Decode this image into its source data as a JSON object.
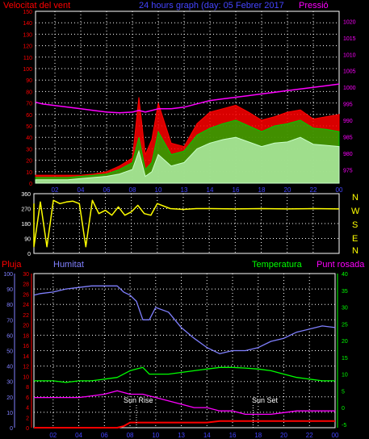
{
  "chart_data": [
    {
      "type": "line",
      "title": "24 hours graph (day: 05 Febrer 2017",
      "left_axis_label": "Velocitat del vent",
      "right_axis_label": "Pressió",
      "x_ticks": [
        "02",
        "04",
        "06",
        "08",
        "10",
        "13",
        "14",
        "16",
        "18",
        "20",
        "22",
        "00"
      ],
      "y_left_ticks": [
        0,
        10,
        20,
        30,
        40,
        50,
        60,
        70,
        80,
        90,
        100,
        110,
        120,
        130,
        140,
        150
      ],
      "y_left_range": [
        0,
        150
      ],
      "y_right_ticks": [
        975,
        980,
        985,
        990,
        995,
        1000,
        1005,
        1010,
        1015,
        1020
      ],
      "y_right_range": [
        971,
        1023
      ],
      "grid": true,
      "colors": {
        "gust": "#ff0000",
        "average": "#00cc00",
        "speed": "#c8ffc8",
        "pressure": "#ff00ff",
        "left_text": "#ff0000",
        "right_text": "#ff00ff",
        "title": "#4444ff"
      },
      "hours": [
        0,
        1,
        2,
        3,
        4,
        5,
        6,
        7,
        8,
        8.5,
        9,
        9.5,
        10,
        11,
        12,
        13,
        14,
        15,
        16,
        17,
        18,
        19,
        20,
        21,
        22,
        23,
        24
      ],
      "series": [
        {
          "name": "",
          "role": "gust",
          "values": [
            7,
            7,
            7,
            7,
            7,
            8,
            10,
            15,
            22,
            75,
            25,
            38,
            70,
            35,
            32,
            52,
            62,
            65,
            68,
            62,
            55,
            58,
            62,
            64,
            56,
            58,
            60
          ]
        },
        {
          "name": "",
          "role": "average",
          "values": [
            5,
            5,
            5,
            5,
            6,
            7,
            8,
            12,
            18,
            40,
            12,
            18,
            45,
            25,
            28,
            42,
            48,
            52,
            55,
            50,
            45,
            50,
            52,
            55,
            48,
            47,
            45
          ]
        },
        {
          "name": "",
          "role": "speed",
          "values": [
            3,
            3,
            3,
            3,
            4,
            5,
            6,
            8,
            12,
            28,
            6,
            10,
            25,
            15,
            18,
            30,
            35,
            38,
            40,
            36,
            32,
            35,
            36,
            40,
            34,
            33,
            32
          ]
        },
        {
          "name": "",
          "role": "pressure",
          "values": [
            995.5,
            995,
            994.5,
            994,
            993.5,
            993,
            992.5,
            992.3,
            992.5,
            993,
            992.5,
            993,
            993.5,
            993.5,
            994,
            995,
            996,
            996.5,
            997,
            997.5,
            998,
            998.5,
            999,
            999.5,
            1000,
            1000.5,
            1001
          ]
        }
      ]
    },
    {
      "type": "line",
      "right_labels": [
        "N",
        "W",
        "S",
        "E",
        "N"
      ],
      "y_ticks": [
        0,
        90,
        180,
        270,
        360
      ],
      "y_range": [
        0,
        360
      ],
      "grid": true,
      "colors": {
        "direction": "#ffff00",
        "labels": "#ffff00",
        "axis": "#ffffff"
      },
      "hours": [
        0,
        0.5,
        1,
        1.5,
        2,
        2.5,
        3,
        3.5,
        4,
        4.5,
        5,
        5.5,
        6,
        6.5,
        7,
        7.5,
        8,
        8.5,
        9,
        9.5,
        10,
        11,
        12,
        13,
        14,
        16,
        18,
        20,
        22,
        24
      ],
      "series": [
        {
          "name": "",
          "role": "direction",
          "values": [
            300,
            40,
            310,
            40,
            320,
            300,
            310,
            315,
            300,
            40,
            320,
            240,
            260,
            230,
            280,
            230,
            250,
            290,
            240,
            230,
            300,
            270,
            265,
            270,
            270,
            268,
            270,
            268,
            270,
            268
          ]
        }
      ]
    },
    {
      "type": "line",
      "labels": {
        "rain": "Pluja",
        "humidity": "Humitat",
        "temperature": "Temperatura",
        "dewpoint": "Punt rosada"
      },
      "annotations": [
        "Sun Rise",
        "Sun Set"
      ],
      "annotation_hours": [
        8.5,
        17.6
      ],
      "x_ticks": [
        "02",
        "04",
        "06",
        "08",
        "10",
        "13",
        "14",
        "16",
        "18",
        "20",
        "22",
        "00"
      ],
      "y_far_left_ticks": [
        0,
        10,
        20,
        30,
        40,
        50,
        60,
        70,
        80,
        90,
        100
      ],
      "y_far_left_range": [
        0,
        100
      ],
      "y_left_ticks": [
        0,
        2,
        4,
        6,
        8,
        10,
        12,
        14,
        16,
        18,
        20,
        22,
        24,
        26,
        28,
        30
      ],
      "y_left_range": [
        0,
        30
      ],
      "y_right_ticks": [
        -5,
        0,
        5,
        10,
        15,
        20,
        25,
        30,
        35,
        40
      ],
      "y_right_range": [
        -6,
        40
      ],
      "grid": true,
      "colors": {
        "rain": "#ff0000",
        "humidity": "#8080ff",
        "temperature": "#00ff00",
        "dewpoint": "#ff00ff",
        "rain_text": "#ff0000",
        "humidity_text": "#8080ff",
        "temperature_text": "#00ff00",
        "dewpoint_text": "#ff00ff",
        "annotation": "#ffffff"
      },
      "hours": [
        0,
        1,
        2,
        3,
        4,
        5,
        6,
        7,
        7.5,
        8,
        8.5,
        9,
        9.5,
        10,
        11,
        12,
        13,
        14,
        15,
        16,
        17,
        18,
        19,
        20,
        21,
        22,
        23,
        24
      ],
      "series": [
        {
          "name": "",
          "role": "rain",
          "values": [
            0,
            0,
            0,
            0,
            0,
            0,
            0,
            0,
            0.3,
            1,
            1,
            1,
            1,
            1,
            1,
            1,
            1,
            1,
            1.3,
            1.3,
            1.3,
            1.3,
            1.3,
            1.3,
            1.3,
            1.3,
            1.3,
            1.3
          ]
        },
        {
          "name": "",
          "role": "humidity",
          "values": [
            86,
            87,
            88,
            90,
            91,
            92,
            92,
            92,
            88,
            86,
            82,
            70,
            70,
            78,
            75,
            65,
            58,
            52,
            48,
            50,
            50,
            52,
            56,
            58,
            62,
            64,
            66,
            65
          ]
        },
        {
          "name": "",
          "role": "temperature",
          "values": [
            8,
            8,
            8,
            7.5,
            8,
            8,
            8.5,
            9,
            10,
            11,
            11.5,
            12,
            10,
            10,
            10,
            10.5,
            11,
            11.5,
            12,
            12,
            11.8,
            11.5,
            11,
            10,
            9,
            8.5,
            8,
            8
          ]
        },
        {
          "name": "",
          "role": "dewpoint",
          "values": [
            3,
            3,
            3,
            3,
            3,
            3.5,
            4,
            5,
            4.5,
            4,
            4,
            4,
            3.5,
            3,
            2,
            1,
            0,
            0,
            -1,
            -1,
            -2,
            -2,
            -2,
            -1.5,
            -1,
            -1,
            -1,
            -1
          ]
        }
      ]
    }
  ]
}
